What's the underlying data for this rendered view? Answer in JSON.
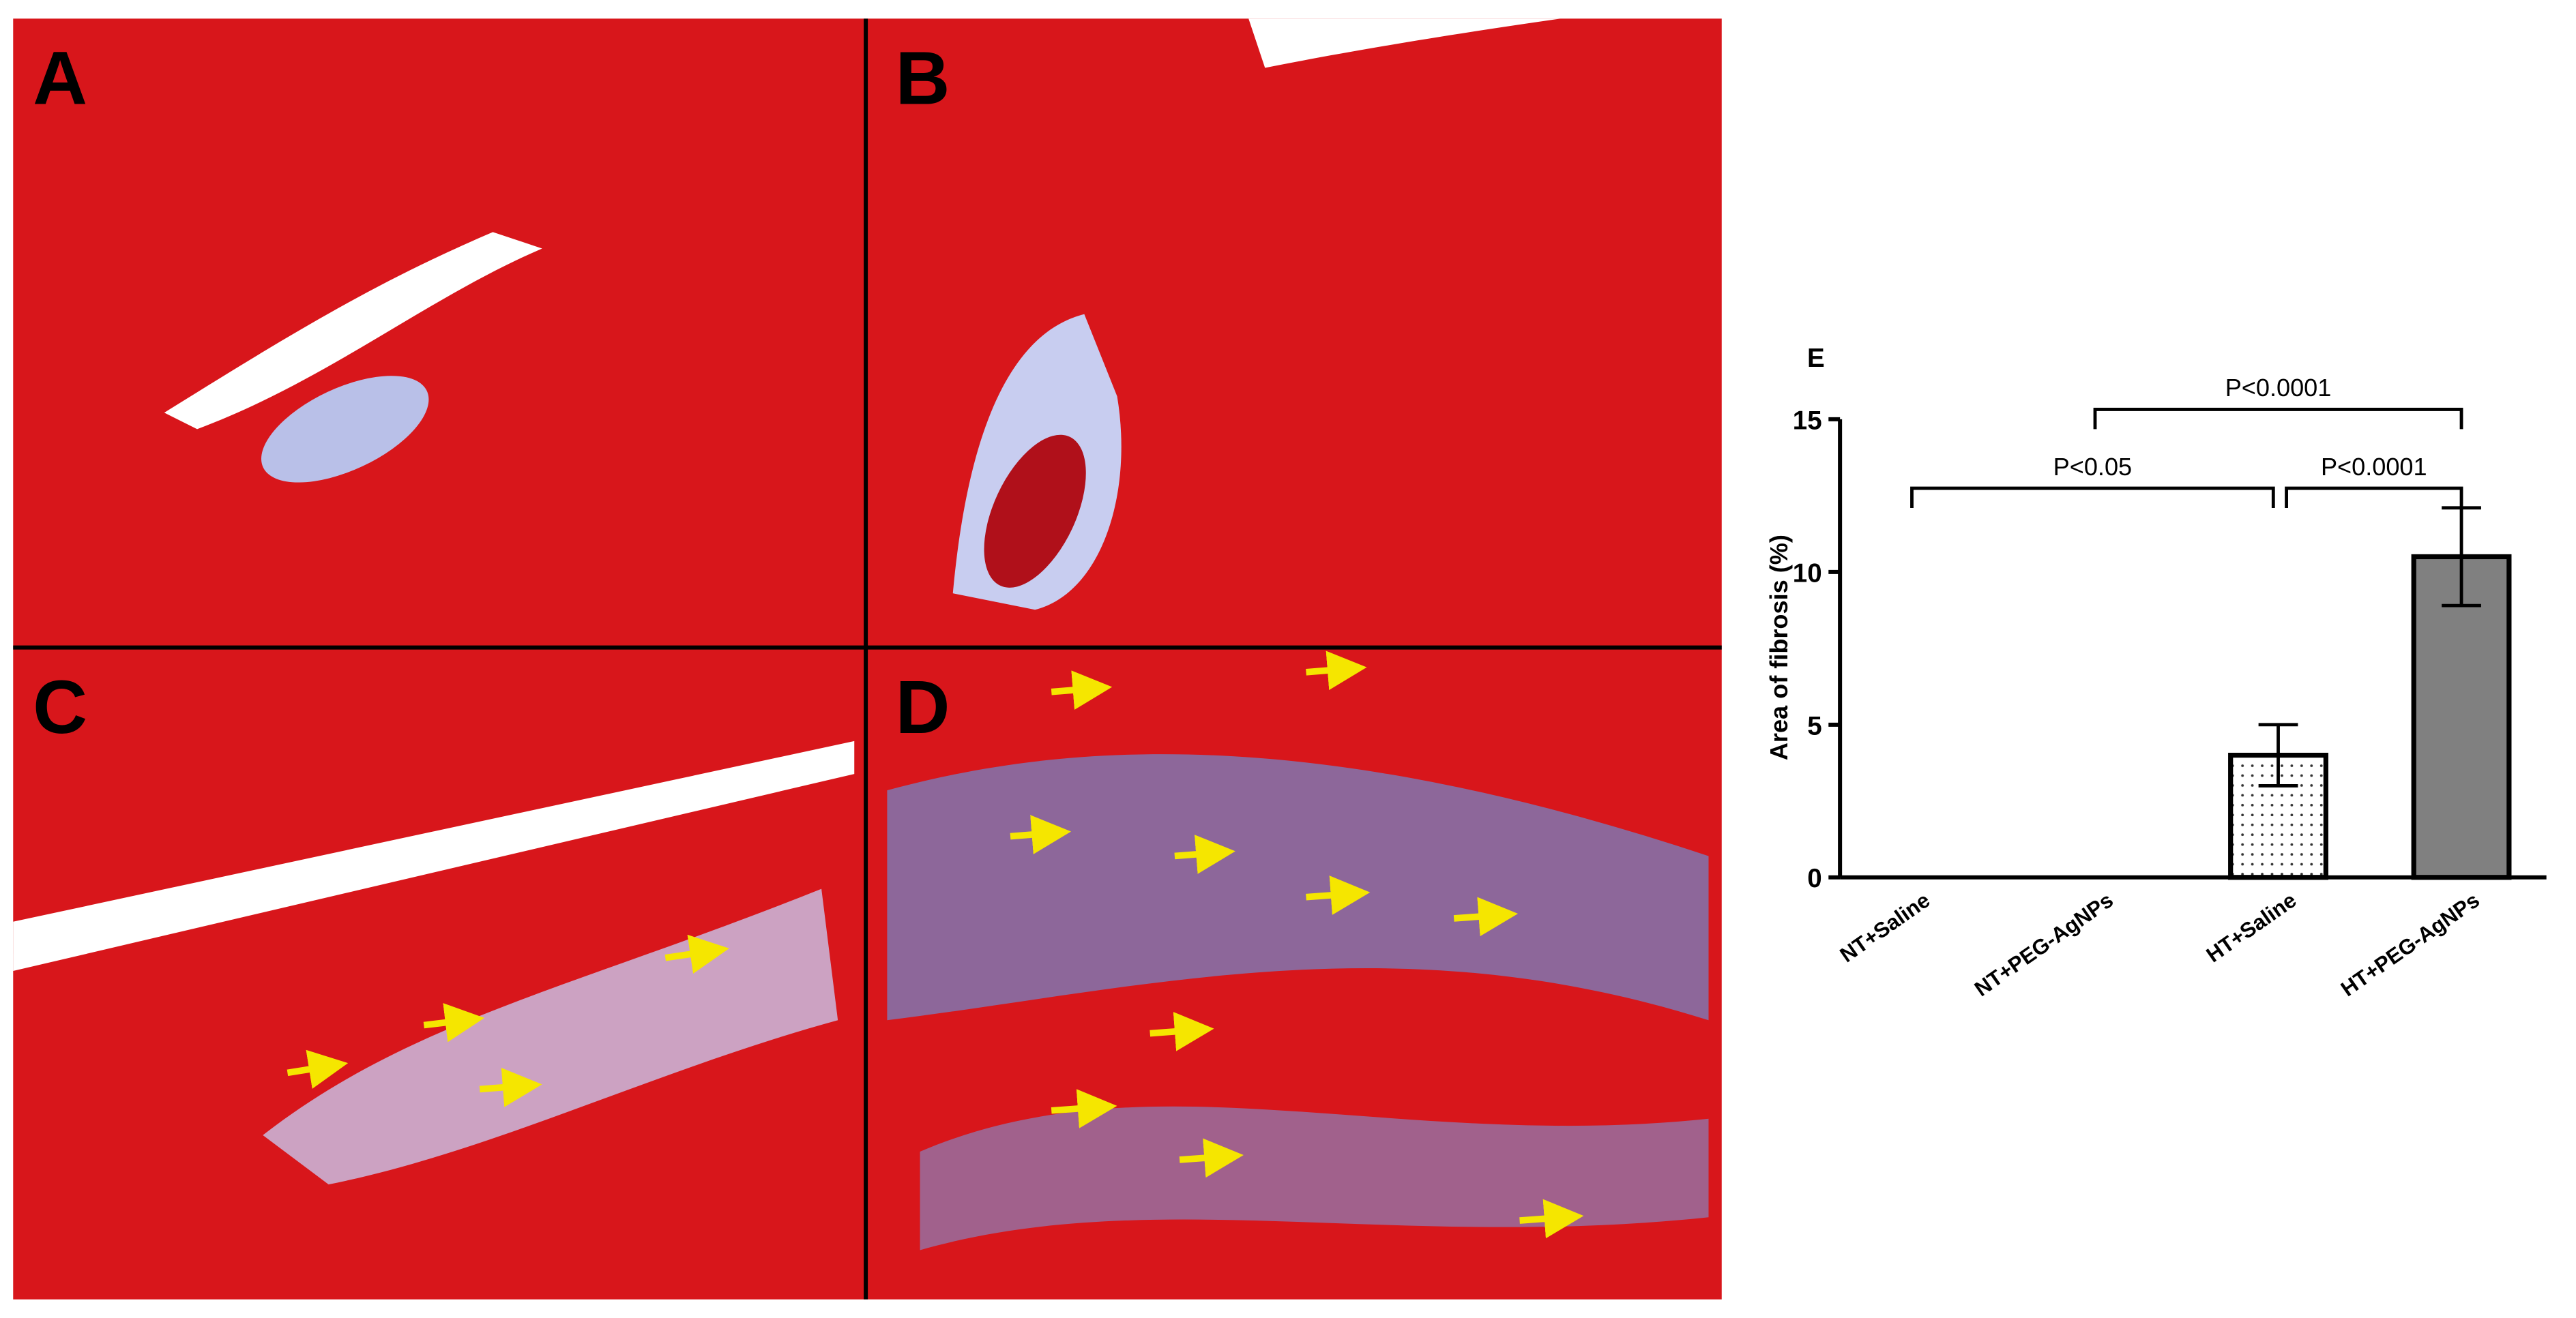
{
  "panels": [
    "A",
    "B",
    "C",
    "D"
  ],
  "chart_data": {
    "type": "bar",
    "title": "E",
    "y_label": "Area of fibrosis (%)",
    "categories": [
      "NT+Saline",
      "NT+PEG-AgNPs",
      "HT+Saline",
      "HT+PEG-AgNPs"
    ],
    "values": [
      0,
      0,
      4,
      10.5
    ],
    "errors": [
      null,
      null,
      1,
      1.6
    ],
    "colors": [
      "#ffffff",
      "#ffffff",
      "#ffffff",
      "#808080"
    ],
    "patterns": [
      null,
      null,
      "dots",
      null
    ],
    "ylim": [
      0,
      15
    ],
    "yticks": [
      0,
      5,
      10,
      15
    ],
    "annotations": [
      {
        "label": "P<0.05",
        "from": 0,
        "to": 2
      },
      {
        "label": "P<0.0001",
        "from": 2,
        "to": 3
      },
      {
        "label": "P<0.0001",
        "from": 1,
        "to": 3
      }
    ]
  }
}
